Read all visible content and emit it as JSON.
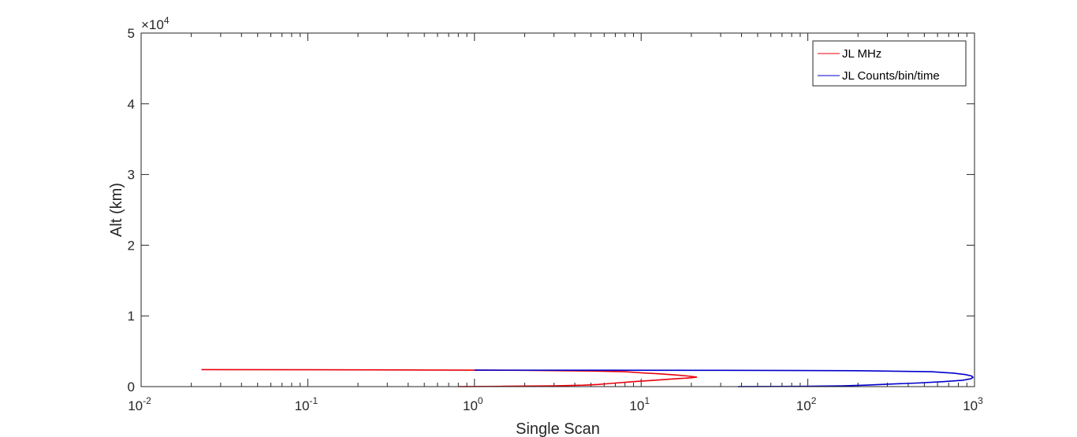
{
  "chart_data": {
    "type": "line",
    "xlabel": "Single Scan",
    "ylabel": "Alt (km)",
    "x_scale": "log",
    "xlim": [
      0.01,
      1000
    ],
    "ylim": [
      0,
      50000
    ],
    "y_exponent_label": "×10",
    "y_exponent_value": "4",
    "x_ticks": [
      {
        "base": "10",
        "exp": "-2",
        "value": 0.01
      },
      {
        "base": "10",
        "exp": "-1",
        "value": 0.1
      },
      {
        "base": "10",
        "exp": "0",
        "value": 1
      },
      {
        "base": "10",
        "exp": "1",
        "value": 10
      },
      {
        "base": "10",
        "exp": "2",
        "value": 100
      },
      {
        "base": "10",
        "exp": "3",
        "value": 1000
      }
    ],
    "y_ticks": [
      {
        "label": "0",
        "value": 0
      },
      {
        "label": "1",
        "value": 10000
      },
      {
        "label": "2",
        "value": 20000
      },
      {
        "label": "3",
        "value": 30000
      },
      {
        "label": "4",
        "value": 40000
      },
      {
        "label": "5",
        "value": 50000
      }
    ],
    "grid": false,
    "legend_position": "top-right",
    "series": [
      {
        "name": "JL MHz",
        "color": "#e8000b",
        "points": [
          [
            0.8,
            0
          ],
          [
            1.5,
            50
          ],
          [
            3.0,
            100
          ],
          [
            4.5,
            200
          ],
          [
            5.5,
            300
          ],
          [
            7.0,
            500
          ],
          [
            9.0,
            700
          ],
          [
            12.0,
            900
          ],
          [
            16.0,
            1100
          ],
          [
            20.0,
            1250
          ],
          [
            21.5,
            1350
          ],
          [
            19.0,
            1500
          ],
          [
            16.0,
            1650
          ],
          [
            13.0,
            1800
          ],
          [
            10.0,
            1950
          ],
          [
            8.0,
            2100
          ],
          [
            5.0,
            2200
          ],
          [
            2.0,
            2300
          ],
          [
            0.5,
            2350
          ],
          [
            0.1,
            2380
          ],
          [
            0.023,
            2400
          ]
        ]
      },
      {
        "name": "JL Counts/bin/time",
        "color": "#0000cc",
        "points": [
          [
            38,
            0
          ],
          [
            100,
            50
          ],
          [
            160,
            100
          ],
          [
            220,
            200
          ],
          [
            300,
            350
          ],
          [
            450,
            500
          ],
          [
            650,
            700
          ],
          [
            850,
            900
          ],
          [
            950,
            1100
          ],
          [
            980,
            1300
          ],
          [
            960,
            1500
          ],
          [
            880,
            1700
          ],
          [
            750,
            1900
          ],
          [
            550,
            2100
          ],
          [
            200,
            2250
          ],
          [
            30,
            2300
          ],
          [
            5,
            2320
          ],
          [
            1.0,
            2330
          ]
        ]
      }
    ]
  }
}
